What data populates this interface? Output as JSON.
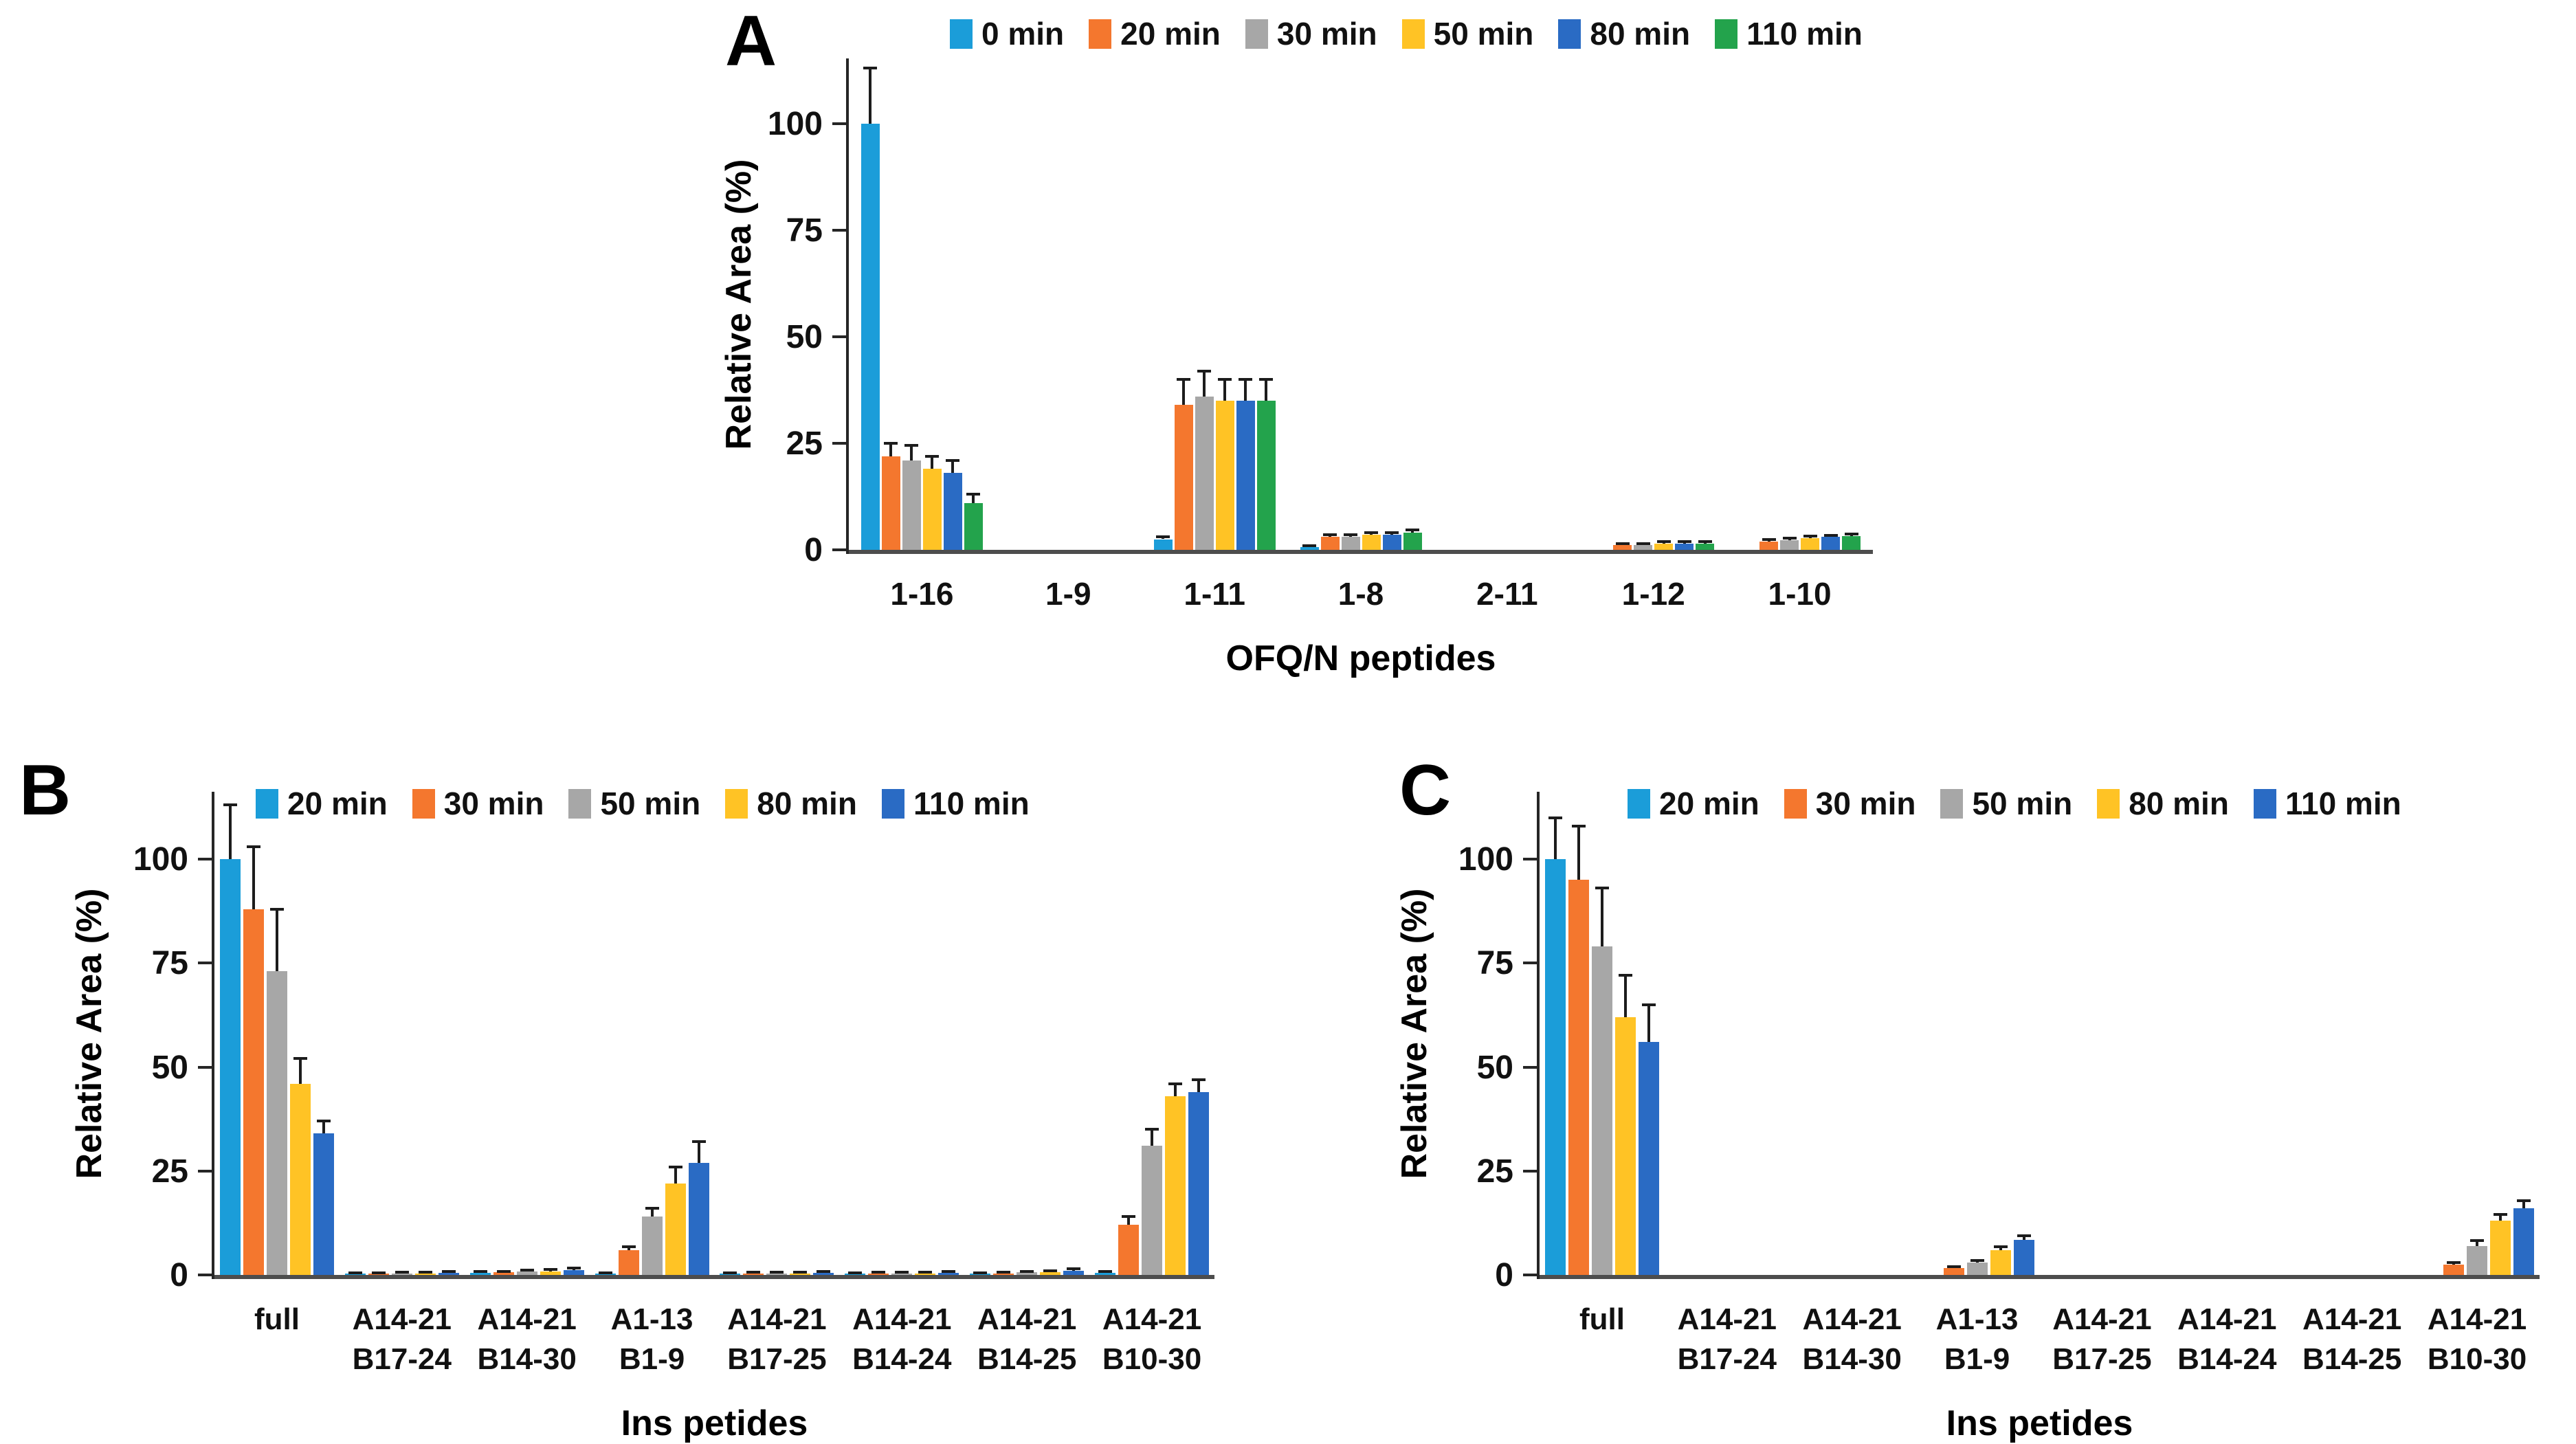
{
  "figure": {
    "panel_labels": [
      "A",
      "B",
      "C"
    ]
  },
  "chart_data": [
    {
      "type": "bar",
      "panel_label": "A",
      "title": "",
      "xlabel": "OFQ/N peptides",
      "ylabel": "Relative Area (%)",
      "ylim": [
        0,
        115
      ],
      "yticks": [
        0,
        25,
        50,
        75,
        100
      ],
      "grid": false,
      "legend_position": "top",
      "error_bars": true,
      "categories": [
        "1-16",
        "1-9",
        "1-11",
        "1-8",
        "2-11",
        "1-12",
        "1-10"
      ],
      "series": [
        {
          "name": "0 min",
          "color": "#1B9DD9",
          "values": [
            100,
            0,
            2.5,
            0.6,
            0,
            0,
            0
          ],
          "errors": [
            13,
            0,
            0.6,
            0.3,
            0,
            0,
            0
          ]
        },
        {
          "name": "20 min",
          "color": "#F4772E",
          "values": [
            22,
            0,
            34,
            3,
            0,
            1.2,
            2
          ],
          "errors": [
            3,
            0,
            6,
            0.6,
            0,
            0.3,
            0.4
          ]
        },
        {
          "name": "30 min",
          "color": "#A7A7A7",
          "values": [
            21,
            0,
            36,
            3,
            0,
            1.2,
            2.3
          ],
          "errors": [
            3.5,
            0,
            6,
            0.6,
            0,
            0.3,
            0.5
          ]
        },
        {
          "name": "50 min",
          "color": "#FFC325",
          "values": [
            19,
            0,
            35,
            3.5,
            0,
            1.5,
            2.8
          ],
          "errors": [
            3,
            0,
            5,
            0.6,
            0,
            0.4,
            0.5
          ]
        },
        {
          "name": "80 min",
          "color": "#2A6BC4",
          "values": [
            18,
            0,
            35,
            3.5,
            0,
            1.5,
            3
          ],
          "errors": [
            3,
            0,
            5,
            0.6,
            0,
            0.4,
            0.4
          ]
        },
        {
          "name": "110  min",
          "color": "#23A34C",
          "values": [
            11,
            0,
            35,
            4,
            0,
            1.5,
            3.2
          ],
          "errors": [
            2,
            0,
            5,
            0.7,
            0,
            0.4,
            0.5
          ]
        }
      ]
    },
    {
      "type": "bar",
      "panel_label": "B",
      "title": "",
      "xlabel": "Ins petides",
      "ylabel": "Relative Area (%)",
      "ylim": [
        0,
        115
      ],
      "yticks": [
        0,
        25,
        50,
        75,
        100
      ],
      "grid": false,
      "legend_position": "top",
      "error_bars": true,
      "categories": [
        "full",
        "A14-21\nB17-24",
        "A14-21\nB14-30",
        "A1-13\nB1-9",
        "A14-21\nB17-25",
        "A14-21\nB14-24",
        "A14-21\nB14-25",
        "A14-21\nB10-30"
      ],
      "series": [
        {
          "name": "20 min",
          "color": "#1B9DD9",
          "values": [
            100,
            0.3,
            0.5,
            0.3,
            0.3,
            0.3,
            0.3,
            0.5
          ],
          "errors": [
            13,
            0.2,
            0.3,
            0.2,
            0.2,
            0.2,
            0.2,
            0.3
          ]
        },
        {
          "name": "30 min",
          "color": "#F4772E",
          "values": [
            88,
            0.3,
            0.6,
            6,
            0.4,
            0.4,
            0.4,
            12
          ],
          "errors": [
            15,
            0.2,
            0.3,
            0.8,
            0.2,
            0.2,
            0.2,
            2
          ]
        },
        {
          "name": "50 min",
          "color": "#A7A7A7",
          "values": [
            73,
            0.4,
            0.8,
            14,
            0.4,
            0.4,
            0.6,
            31
          ],
          "errors": [
            15,
            0.2,
            0.4,
            2,
            0.2,
            0.2,
            0.3,
            4
          ]
        },
        {
          "name": "80 min",
          "color": "#FFC325",
          "values": [
            46,
            0.4,
            0.9,
            22,
            0.4,
            0.4,
            0.7,
            43
          ],
          "errors": [
            6,
            0.2,
            0.4,
            4,
            0.2,
            0.2,
            0.3,
            3
          ]
        },
        {
          "name": "110 min",
          "color": "#2A6BC4",
          "values": [
            34,
            0.5,
            1.2,
            27,
            0.5,
            0.5,
            1,
            44
          ],
          "errors": [
            3,
            0.3,
            0.5,
            5,
            0.3,
            0.3,
            0.5,
            3
          ]
        }
      ]
    },
    {
      "type": "bar",
      "panel_label": "C",
      "title": "",
      "xlabel": "Ins petides",
      "ylabel": "Relative Area (%)",
      "ylim": [
        0,
        115
      ],
      "yticks": [
        0,
        25,
        50,
        75,
        100
      ],
      "grid": false,
      "legend_position": "top",
      "error_bars": true,
      "categories": [
        "full",
        "A14-21\nB17-24",
        "A14-21\nB14-30",
        "A1-13\nB1-9",
        "A14-21\nB17-25",
        "A14-21\nB14-24",
        "A14-21\nB14-25",
        "A14-21\nB10-30"
      ],
      "series": [
        {
          "name": "20 min",
          "color": "#1B9DD9",
          "values": [
            100,
            0,
            0,
            0,
            0,
            0,
            0,
            0
          ],
          "errors": [
            10,
            0,
            0,
            0,
            0,
            0,
            0,
            0
          ]
        },
        {
          "name": "30 min",
          "color": "#F4772E",
          "values": [
            95,
            0,
            0,
            1.7,
            0,
            0,
            0,
            2.5
          ],
          "errors": [
            13,
            0,
            0,
            0.3,
            0,
            0,
            0,
            0.5
          ]
        },
        {
          "name": "50 min",
          "color": "#A7A7A7",
          "values": [
            79,
            0,
            0,
            3,
            0,
            0,
            0,
            7
          ],
          "errors": [
            14,
            0,
            0,
            0.5,
            0,
            0,
            0,
            1.2
          ]
        },
        {
          "name": "80 min",
          "color": "#FFC325",
          "values": [
            62,
            0,
            0,
            6,
            0,
            0,
            0,
            13
          ],
          "errors": [
            10,
            0,
            0,
            0.8,
            0,
            0,
            0,
            1.5
          ]
        },
        {
          "name": "110 min",
          "color": "#2A6BC4",
          "values": [
            56,
            0,
            0,
            8.5,
            0,
            0,
            0,
            16
          ],
          "errors": [
            9,
            0,
            0,
            1,
            0,
            0,
            0,
            1.8
          ]
        }
      ]
    }
  ]
}
